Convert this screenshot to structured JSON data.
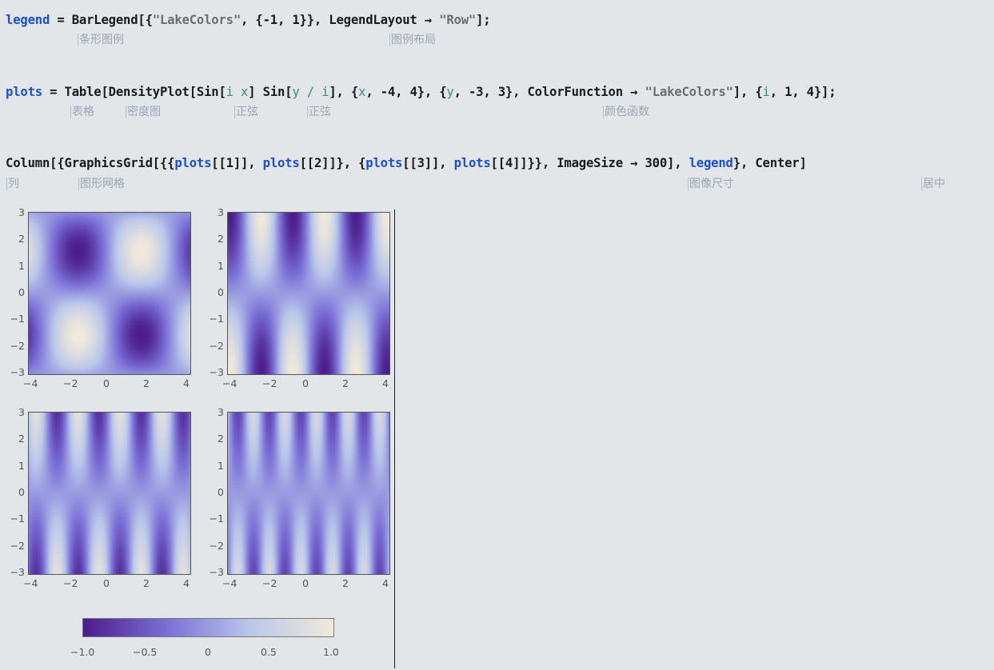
{
  "notebook": {
    "cells": [
      {
        "parts": [
          {
            "t": "legend",
            "c": "v"
          },
          {
            "t": " = BarLegend[{",
            "c": ""
          },
          {
            "t": "\"LakeColors\"",
            "c": "s"
          },
          {
            "t": ", {-1, 1}}, LegendLayout → ",
            "c": ""
          },
          {
            "t": "\"Row\"",
            "c": "s"
          },
          {
            "t": "];",
            "c": ""
          }
        ],
        "annotations": [
          {
            "text": "条形图例"
          },
          {
            "text": "图例布局"
          }
        ]
      },
      {
        "parts": [
          {
            "t": "plots",
            "c": "v"
          },
          {
            "t": " = Table[DensityPlot[Sin[",
            "c": ""
          },
          {
            "t": "i x",
            "c": "it"
          },
          {
            "t": "] Sin[",
            "c": ""
          },
          {
            "t": "y / i",
            "c": "it"
          },
          {
            "t": "], {",
            "c": ""
          },
          {
            "t": "x",
            "c": "it"
          },
          {
            "t": ", -4, 4}, {",
            "c": ""
          },
          {
            "t": "y",
            "c": "it"
          },
          {
            "t": ", -3, 3}, ColorFunction → ",
            "c": ""
          },
          {
            "t": "\"LakeColors\"",
            "c": "s"
          },
          {
            "t": "], {",
            "c": ""
          },
          {
            "t": "i",
            "c": "it"
          },
          {
            "t": ", 1, 4}];",
            "c": ""
          }
        ],
        "annotations": [
          {
            "text": "表格"
          },
          {
            "text": "密度图"
          },
          {
            "text": "正弦"
          },
          {
            "text": "正弦"
          },
          {
            "text": "颜色函数"
          }
        ]
      },
      {
        "parts": [
          {
            "t": "Column[{GraphicsGrid[{{",
            "c": ""
          },
          {
            "t": "plots",
            "c": "v"
          },
          {
            "t": "[[1]], ",
            "c": ""
          },
          {
            "t": "plots",
            "c": "v"
          },
          {
            "t": "[[2]]}, {",
            "c": ""
          },
          {
            "t": "plots",
            "c": "v"
          },
          {
            "t": "[[3]], ",
            "c": ""
          },
          {
            "t": "plots",
            "c": "v"
          },
          {
            "t": "[[4]]}}, ImageSize → 300], ",
            "c": ""
          },
          {
            "t": "legend",
            "c": "v"
          },
          {
            "t": "}, Center]",
            "c": ""
          }
        ],
        "annotations": [
          {
            "text": "列"
          },
          {
            "text": "图形网格"
          },
          {
            "text": "图像尺寸"
          },
          {
            "text": "居中"
          }
        ]
      }
    ]
  },
  "output": {
    "plots": [
      {
        "i": 1
      },
      {
        "i": 2
      },
      {
        "i": 3
      },
      {
        "i": 4
      }
    ],
    "x_ticks": [
      "−4",
      "−2",
      "0",
      "2",
      "4"
    ],
    "y_ticks": [
      "3",
      "2",
      "1",
      "0",
      "−1",
      "−2",
      "−3"
    ],
    "legend": {
      "labels": [
        "−1.0",
        "−0.5",
        "0",
        "0.5",
        "1.0"
      ],
      "colors": [
        "#4b1d8c",
        "#7a6fd6",
        "#b9c7ea",
        "#f1eadb"
      ]
    }
  }
}
